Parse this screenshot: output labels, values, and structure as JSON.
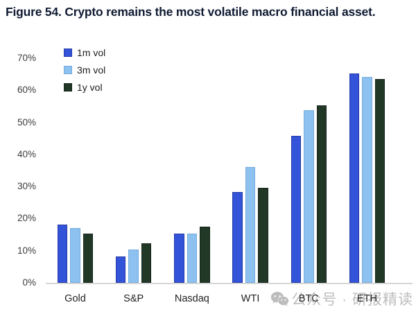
{
  "title": "Figure 54. Crypto remains the most volatile macro financial asset.",
  "watermark": {
    "text": "公众号 · 研报精读",
    "icon": "wechat-icon",
    "color": "#bdbdbd"
  },
  "colors": {
    "background": "#ffffff",
    "title_text": "#101b33",
    "axis_line": "#d6d6d6",
    "tick_label": "#3c3c3c",
    "category_label": "#1f1f1f",
    "series_1m": "#3354d8",
    "series_3m": "#8dc1f0",
    "series_1y": "#223827"
  },
  "chart_data": {
    "type": "bar",
    "title": "Figure 54. Crypto remains the most volatile macro financial asset.",
    "categories": [
      "Gold",
      "S&P",
      "Nasdaq",
      "WTI",
      "BTC",
      "ETH"
    ],
    "series": [
      {
        "name": "1m vol",
        "color": "#3354d8",
        "border": "#2439a8",
        "values": [
          18.2,
          8.2,
          15.3,
          28.4,
          45.8,
          65.2
        ]
      },
      {
        "name": "3m vol",
        "color": "#8dc1f0",
        "border": "#74abdf",
        "values": [
          17.1,
          10.4,
          15.3,
          36.1,
          53.9,
          64.2
        ]
      },
      {
        "name": "1y vol",
        "color": "#223827",
        "border": "#15251a",
        "values": [
          15.4,
          12.3,
          17.6,
          29.7,
          55.4,
          63.6
        ]
      }
    ],
    "xlabel": "",
    "ylabel": "",
    "ylim": [
      0,
      70
    ],
    "yticks": [
      "0%",
      "10%",
      "20%",
      "30%",
      "40%",
      "50%",
      "60%",
      "70%"
    ],
    "grid": false,
    "legend_position": "top-left-inside"
  }
}
